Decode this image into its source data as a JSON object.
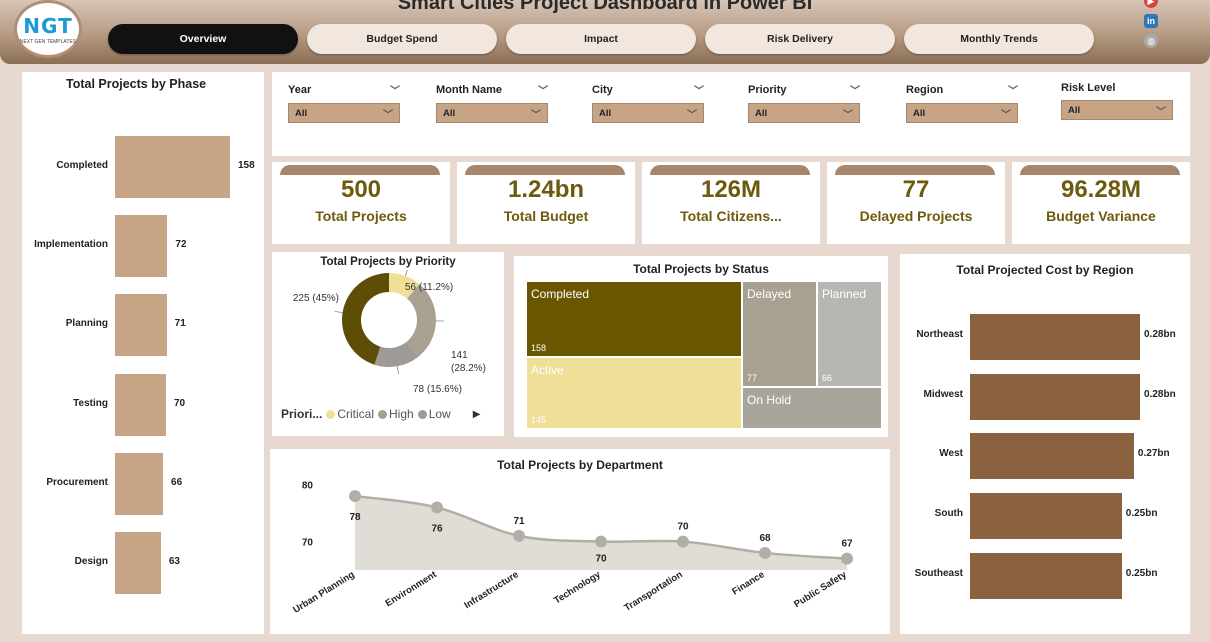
{
  "header": {
    "title": "Smart Cities Project Dashboard in Power BI",
    "logo_text": "NGT",
    "logo_subtext": "NEXT GEN TEMPLATES",
    "tabs": [
      {
        "label": "Overview",
        "active": true
      },
      {
        "label": "Budget Spend",
        "active": false
      },
      {
        "label": "Impact",
        "active": false
      },
      {
        "label": "Risk Delivery",
        "active": false
      },
      {
        "label": "Monthly Trends",
        "active": false
      }
    ],
    "social_icons": [
      "youtube-icon",
      "linkedin-icon",
      "globe-icon"
    ]
  },
  "filters": [
    {
      "label": "Year",
      "value": "All"
    },
    {
      "label": "Month Name",
      "value": "All"
    },
    {
      "label": "City",
      "value": "All"
    },
    {
      "label": "Priority",
      "value": "All"
    },
    {
      "label": "Region",
      "value": "All"
    },
    {
      "label": "Risk Level",
      "value": "All"
    }
  ],
  "kpis": [
    {
      "value": "500",
      "label": "Total Projects"
    },
    {
      "value": "1.24bn",
      "label": "Total Budget"
    },
    {
      "value": "126M",
      "label": "Total Citizens..."
    },
    {
      "value": "77",
      "label": "Delayed Projects"
    },
    {
      "value": "96.28M",
      "label": "Budget Variance"
    }
  ],
  "colors": {
    "accent_brown": "#c8a487",
    "kpi_text": "#6d5a0c",
    "region_bar": "#8a6240",
    "critical": "#efdf99",
    "high": "#a8a191",
    "low": "#9e9b97",
    "active_tab": "#111111"
  },
  "chart_data": [
    {
      "id": "phase",
      "type": "bar",
      "orientation": "horizontal",
      "title": "Total Projects by Phase",
      "categories": [
        "Completed",
        "Implementation",
        "Planning",
        "Testing",
        "Procurement",
        "Design"
      ],
      "values": [
        158,
        72,
        71,
        70,
        66,
        63
      ],
      "labels": [
        "158",
        "72",
        "71",
        "70",
        "66",
        "63"
      ]
    },
    {
      "id": "priority",
      "type": "pie",
      "title": "Total Projects by Priority",
      "legend_title": "Priori...",
      "slices": [
        {
          "name": "Critical",
          "value": 56,
          "label": "56 (11.2%)",
          "color": "#efdf99"
        },
        {
          "name": "High",
          "value": 141,
          "label": "141 (28.2%)",
          "color": "#a8a191"
        },
        {
          "name": "Low",
          "value": 78,
          "label": "78 (15.6%)",
          "color": "#9e9b97"
        },
        {
          "name": "",
          "value": 225,
          "label": "225 (45%)",
          "color": "#5e4d06"
        }
      ],
      "legend": [
        "Critical",
        "High",
        "Low"
      ]
    },
    {
      "id": "status",
      "type": "treemap",
      "title": "Total Projects by Status",
      "items": [
        {
          "name": "Completed",
          "value": 158,
          "label": "158"
        },
        {
          "name": "Active",
          "value": 145,
          "label": "145"
        },
        {
          "name": "Delayed",
          "value": 77,
          "label": "77"
        },
        {
          "name": "Planned",
          "value": 66,
          "label": "66"
        },
        {
          "name": "On Hold",
          "value": 54,
          "label": ""
        }
      ]
    },
    {
      "id": "department",
      "type": "area",
      "title": "Total Projects by Department",
      "categories": [
        "Urban Planning",
        "Environment",
        "Infrastructure",
        "Technology",
        "Transportation",
        "Finance",
        "Public Safety"
      ],
      "values": [
        78,
        76,
        71,
        70,
        70,
        68,
        67
      ],
      "yticks": [
        "80",
        "70"
      ],
      "ylim": [
        65,
        81
      ]
    },
    {
      "id": "region",
      "type": "bar",
      "orientation": "horizontal",
      "title": "Total Projected Cost by Region",
      "categories": [
        "Northeast",
        "Midwest",
        "West",
        "South",
        "Southeast"
      ],
      "values": [
        0.28,
        0.28,
        0.27,
        0.25,
        0.25
      ],
      "labels": [
        "0.28bn",
        "0.28bn",
        "0.27bn",
        "0.25bn",
        "0.25bn"
      ]
    }
  ]
}
